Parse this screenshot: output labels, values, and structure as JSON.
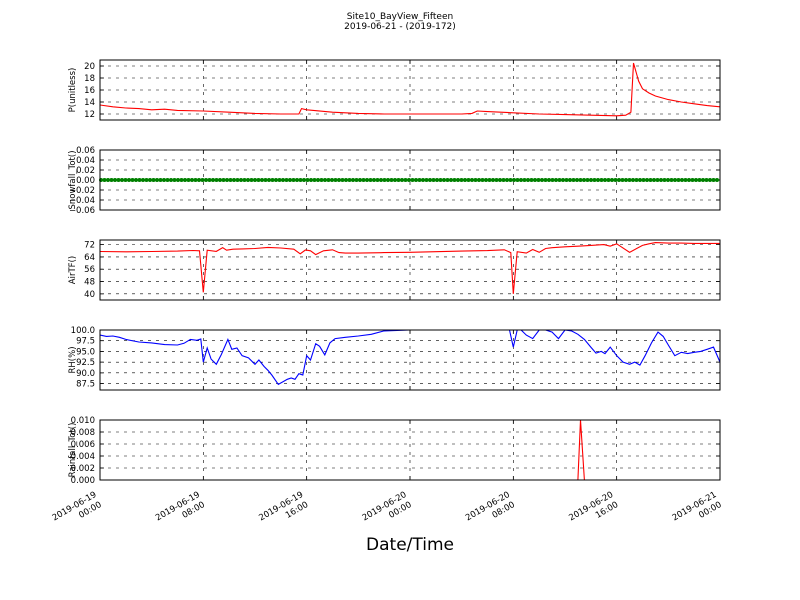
{
  "figure": {
    "title_line1": "Site10_BayView_Fifteen",
    "title_line2": "2019-06-21 - (2019-172)",
    "xlabel": "Date/Time"
  },
  "chart_data": [
    {
      "type": "line",
      "ylabel": "P(unitless)",
      "ylim": [
        11,
        21
      ],
      "yticks": [
        "12",
        "14",
        "16",
        "18",
        "20"
      ],
      "grid": true,
      "series": [
        {
          "color": "#ff0000",
          "x": [
            0,
            1,
            2,
            3,
            4,
            5,
            6,
            8,
            10,
            12,
            14,
            15.4,
            15.6,
            16,
            18,
            20,
            22,
            24,
            26,
            28,
            28.8,
            29.2,
            30,
            32,
            34,
            36,
            38,
            40,
            40.7,
            41.1,
            41.3,
            41.7,
            42,
            42.5,
            43,
            44,
            45,
            46,
            47,
            48
          ],
          "y": [
            13.5,
            13.2,
            13.0,
            12.9,
            12.7,
            12.8,
            12.6,
            12.5,
            12.3,
            12.1,
            12.0,
            12.0,
            12.9,
            12.7,
            12.3,
            12.1,
            12.0,
            12.0,
            12.0,
            12.0,
            12.1,
            12.5,
            12.4,
            12.2,
            12.0,
            11.9,
            11.8,
            11.7,
            11.8,
            12.3,
            20.5,
            17.5,
            16.2,
            15.5,
            15.0,
            14.4,
            14.0,
            13.7,
            13.4,
            13.2
          ]
        }
      ]
    },
    {
      "type": "line",
      "ylabel": "Snowfall_Tot()",
      "ylim": [
        -0.06,
        0.06
      ],
      "yticks": [
        "−0.06",
        "−0.04",
        "−0.02",
        "0.00",
        "0.02",
        "0.04",
        "0.06"
      ],
      "grid": true,
      "series": [
        {
          "color": "#008000",
          "markers": true,
          "x": [
            0,
            48
          ],
          "y": [
            0,
            0
          ]
        }
      ]
    },
    {
      "type": "line",
      "ylabel": "AirTF()",
      "ylim": [
        36,
        75
      ],
      "yticks": [
        "40",
        "48",
        "56",
        "64",
        "72"
      ],
      "grid": true,
      "series": [
        {
          "color": "#ff0000",
          "x": [
            0,
            2,
            4,
            6,
            7.2,
            7.7,
            8.0,
            8.3,
            9,
            9.5,
            9.8,
            10.3,
            11,
            12,
            13,
            14,
            15,
            15.5,
            15.9,
            16.3,
            16.7,
            17.3,
            18,
            18.5,
            19,
            20,
            22,
            24,
            26,
            28,
            30,
            31.3,
            31.8,
            32.0,
            32.3,
            33,
            33.5,
            34,
            34.5,
            35,
            36,
            37,
            38,
            39,
            39.5,
            40,
            41,
            42,
            42.5,
            43,
            44,
            45,
            46,
            47,
            48
          ],
          "y": [
            67.5,
            67.3,
            67.5,
            67.8,
            68.2,
            68.0,
            41.0,
            68.4,
            67.6,
            70.0,
            68.4,
            69.0,
            69.2,
            69.5,
            70.2,
            69.8,
            69.0,
            66.0,
            68.5,
            68.0,
            65.5,
            68.0,
            68.6,
            66.8,
            66.5,
            66.5,
            66.8,
            67.0,
            67.4,
            67.8,
            68.1,
            68.6,
            66.8,
            40.0,
            67.4,
            66.5,
            68.8,
            67.0,
            69.5,
            70.0,
            70.6,
            71.0,
            71.5,
            72.0,
            71.0,
            72.5,
            67.0,
            71.5,
            72.5,
            73.3,
            73.0,
            73.0,
            72.8,
            72.8,
            72.8
          ]
        }
      ]
    },
    {
      "type": "line",
      "ylabel": "RH(%)",
      "ylim": [
        86,
        100
      ],
      "yticks": [
        "87.5",
        "90.0",
        "92.5",
        "95.0",
        "97.5",
        "100.0"
      ],
      "grid": true,
      "series": [
        {
          "color": "#0000ff",
          "x": [
            0,
            0.5,
            1,
            1.5,
            2,
            3,
            4,
            5,
            6,
            6.5,
            7,
            7.5,
            7.8,
            8.0,
            8.3,
            8.6,
            9,
            9.4,
            9.9,
            10.2,
            10.6,
            11,
            11.5,
            12,
            12.3,
            12.7,
            13.0,
            13.3,
            13.8,
            14.5,
            14.8,
            15.1,
            15.4,
            15.7,
            16.0,
            16.3,
            16.7,
            17.0,
            17.4,
            17.8,
            18.2,
            19,
            20,
            21,
            22,
            24,
            26,
            28,
            31.7,
            32.0,
            32.3,
            32.6,
            33.0,
            33.5,
            34,
            34.5,
            35,
            35.5,
            36,
            36.5,
            37.0,
            37.5,
            38,
            38.4,
            38.8,
            39.1,
            39.5,
            40.0,
            40.5,
            41.0,
            41.4,
            41.8,
            42.2,
            42.7,
            43.2,
            43.6,
            44,
            44.5,
            45,
            45.5,
            46.0,
            46.5,
            47,
            47.5,
            48
          ],
          "y": [
            98.8,
            98.5,
            98.6,
            98.3,
            97.8,
            97.2,
            97.0,
            96.6,
            96.5,
            96.9,
            97.8,
            97.6,
            97.9,
            92.5,
            95.8,
            93.2,
            92.0,
            94.3,
            97.8,
            95.5,
            95.8,
            94.0,
            93.5,
            92.0,
            93.0,
            91.5,
            90.6,
            89.5,
            87.3,
            88.5,
            88.8,
            88.5,
            89.8,
            89.5,
            94.0,
            93.0,
            96.8,
            96.2,
            94.2,
            97.0,
            98.0,
            98.3,
            98.6,
            99.0,
            99.8,
            100.0,
            100.0,
            100.0,
            100.0,
            96.0,
            100.0,
            100.0,
            98.8,
            98.0,
            100.0,
            100.0,
            99.5,
            98.0,
            100.0,
            99.8,
            99.0,
            97.8,
            96.0,
            94.6,
            95.0,
            94.5,
            96.0,
            94.0,
            92.5,
            92.0,
            92.5,
            91.8,
            94.0,
            97.0,
            99.5,
            98.5,
            96.5,
            94.0,
            94.8,
            94.5,
            94.8,
            95.0,
            95.5,
            96.0,
            92.5
          ]
        }
      ]
    },
    {
      "type": "line",
      "ylabel": "Rainfall_Tot()",
      "ylim": [
        0,
        0.01
      ],
      "yticks": [
        "0.000",
        "0.002",
        "0.004",
        "0.006",
        "0.008",
        "0.010"
      ],
      "grid": true,
      "series": [
        {
          "color": "#ff0000",
          "x": [
            0,
            37.0,
            37.2,
            37.5,
            48
          ],
          "y": [
            0,
            0,
            0.01,
            0,
            0
          ]
        }
      ]
    }
  ],
  "x_axis": {
    "range": [
      0,
      48
    ],
    "ticks": [
      {
        "x": 0,
        "date": "2019-06-19",
        "time": "00:00"
      },
      {
        "x": 8,
        "date": "2019-06-19",
        "time": "08:00"
      },
      {
        "x": 16,
        "date": "2019-06-19",
        "time": "16:00"
      },
      {
        "x": 24,
        "date": "2019-06-20",
        "time": "00:00"
      },
      {
        "x": 32,
        "date": "2019-06-20",
        "time": "08:00"
      },
      {
        "x": 40,
        "date": "2019-06-20",
        "time": "16:00"
      },
      {
        "x": 48,
        "date": "2019-06-21",
        "time": "00:00"
      }
    ]
  }
}
